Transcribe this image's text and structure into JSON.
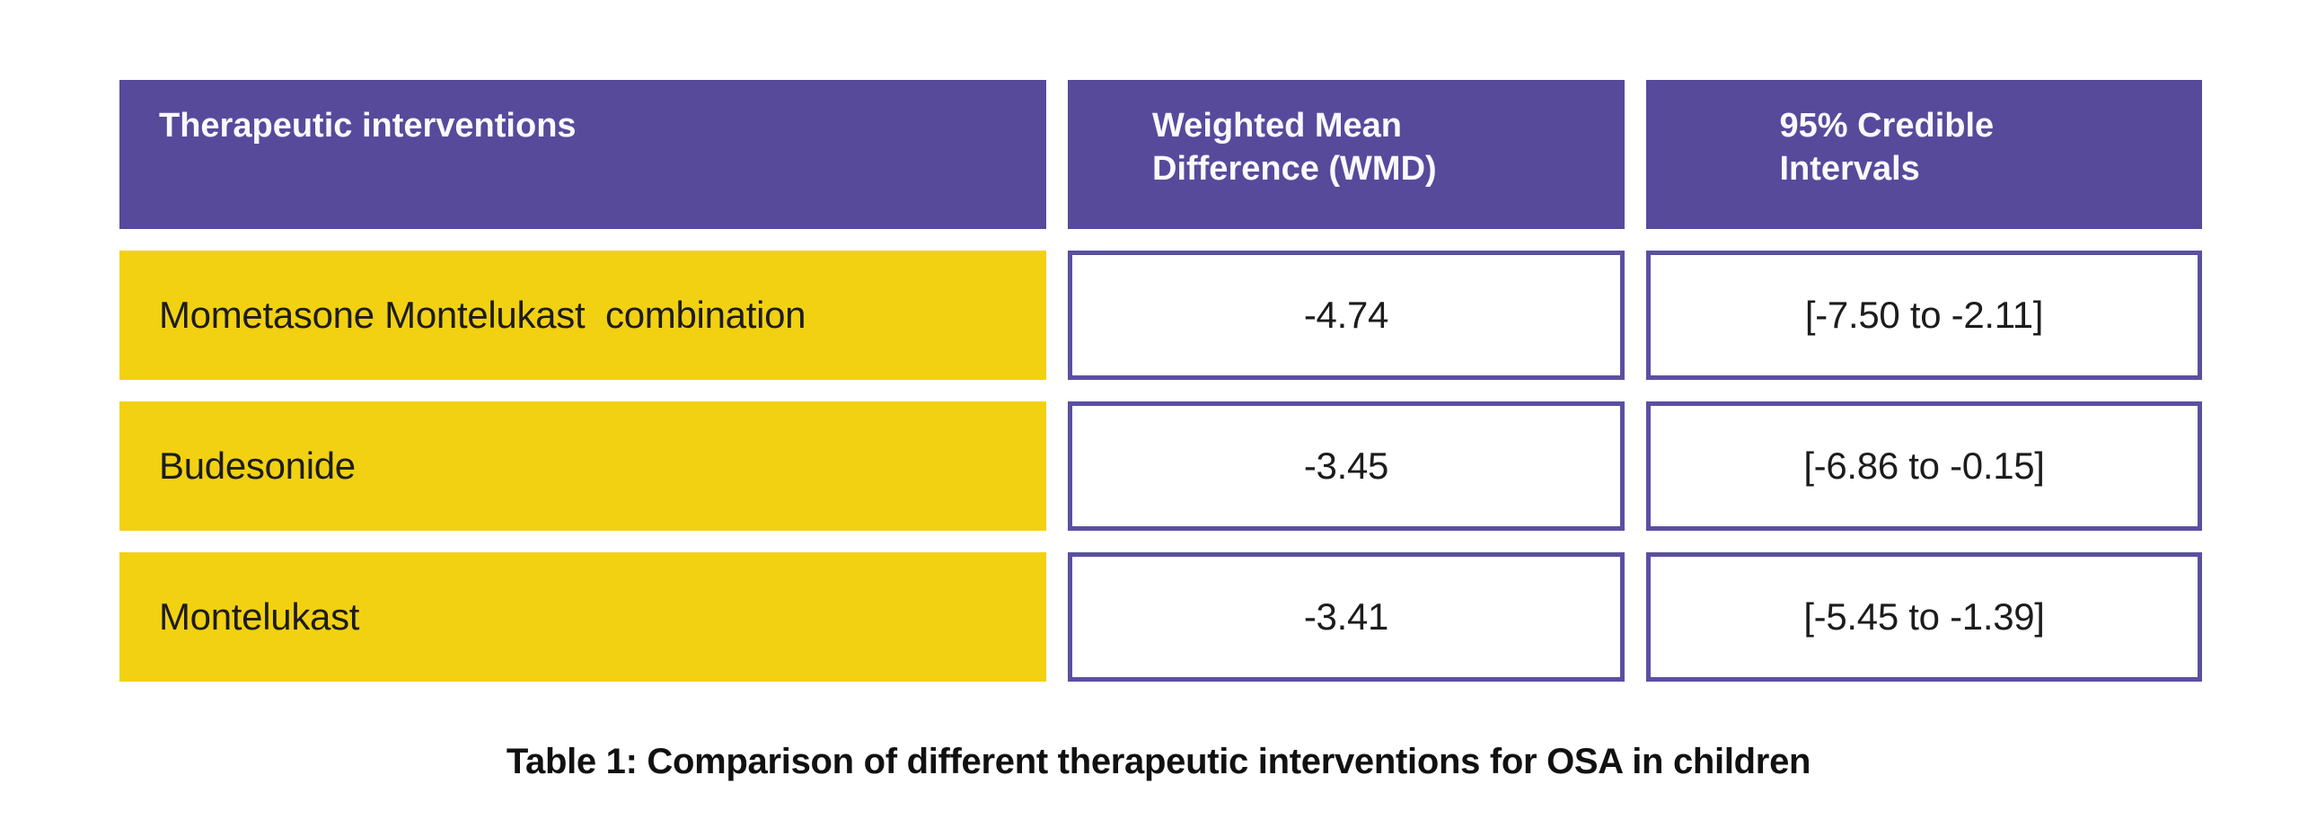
{
  "chart_data": {
    "type": "table",
    "title": "Table 1: Comparison of different therapeutic interventions for OSA in children",
    "columns": [
      "Therapeutic interventions",
      "Weighted Mean Difference (WMD)",
      "95% Credible Intervals"
    ],
    "rows": [
      [
        "Mometasone Montelukast  combination",
        "-4.74",
        "[-7.50 to -2.11]"
      ],
      [
        "Budesonide",
        "-3.45",
        "[-6.86 to -0.15]"
      ],
      [
        "Montelukast",
        "-3.41",
        "[-5.45 to -1.39]"
      ]
    ],
    "layout": {
      "header_position": "top",
      "label_column_alignment": "left",
      "value_columns_alignment": "center",
      "caption_position": "bottom-center"
    }
  },
  "colors": {
    "header_bg": "#574A9B",
    "header_text": "#FFFFFF",
    "row_label_bg": "#F2D112",
    "value_cell_bg": "#FFFFFF",
    "value_cell_border": "#5A50A0",
    "body_text": "#1C1C1C",
    "caption_text": "#111111",
    "page_bg": "#FFFFFF"
  }
}
